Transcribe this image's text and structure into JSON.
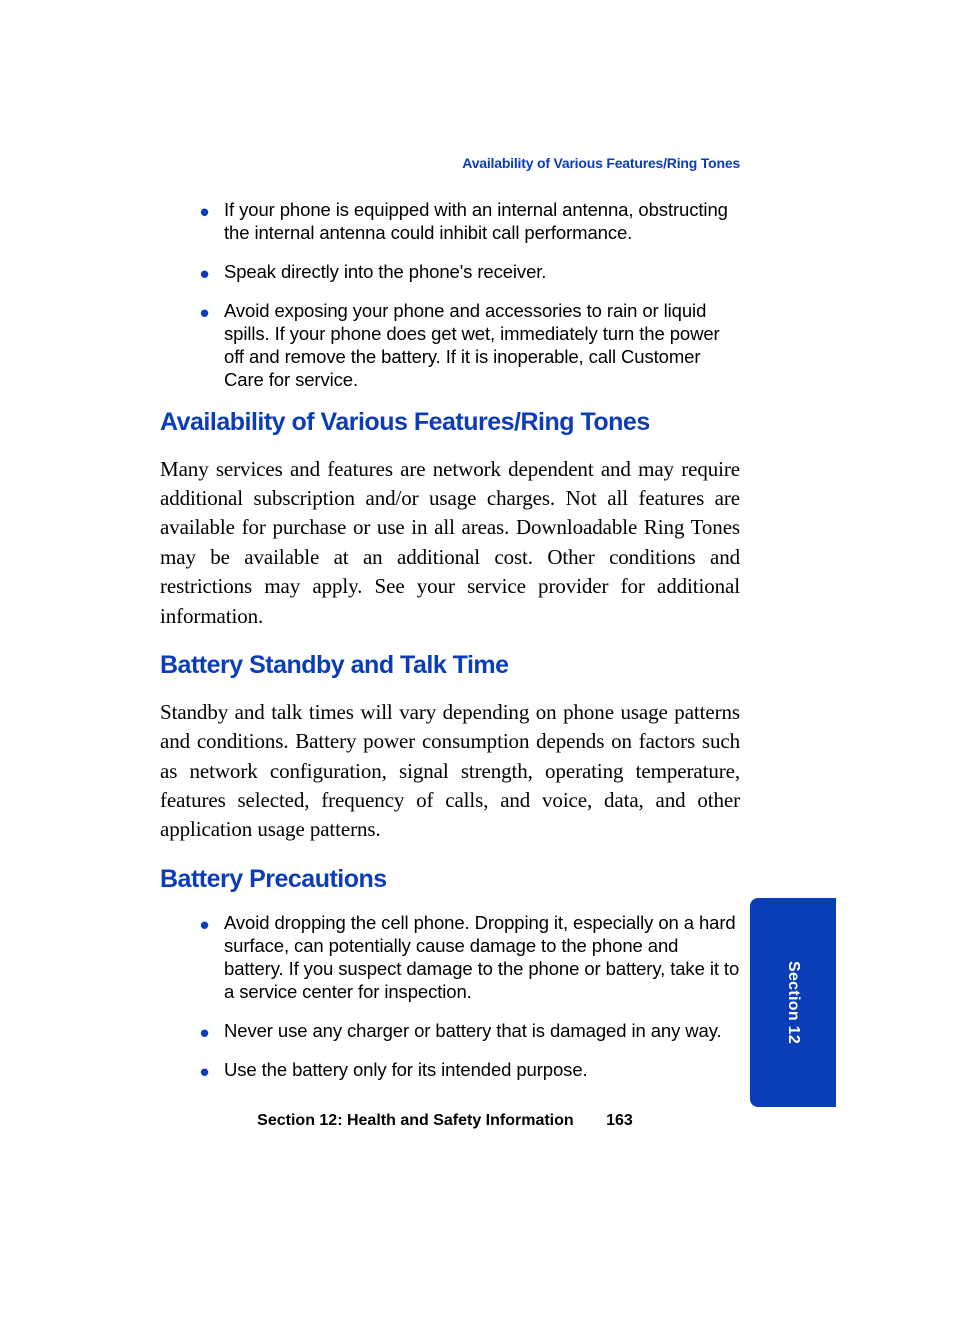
{
  "colors": {
    "accent": "#0b3db8",
    "text": "#000000",
    "background": "#ffffff",
    "tab_background": "#0b3db8",
    "tab_text": "#ffffff"
  },
  "typography": {
    "heading_font": "Arial",
    "heading_size_pt": 19,
    "heading_weight": "bold",
    "body_font": "Palatino",
    "body_size_pt": 16,
    "bullet_font": "Arial",
    "bullet_size_pt": 14,
    "running_header_size_pt": 11,
    "footer_size_pt": 12
  },
  "running_header": "Availability of Various Features/Ring Tones",
  "top_bullets": [
    "If your phone is equipped with an internal antenna, obstructing the internal antenna could inhibit call performance.",
    "Speak directly into the phone's receiver.",
    "Avoid exposing your phone and accessories to rain or liquid spills. If your phone does get wet, immediately turn the power off and remove the battery. If it is inoperable, call Customer Care for service."
  ],
  "sections": [
    {
      "title": "Availability of Various Features/Ring Tones",
      "body": "Many services and features are network dependent and may require additional subscription and/or usage charges. Not all features are available for purchase or use in all areas. Downloadable Ring Tones may be available at an additional cost. Other conditions and restrictions may apply. See your service provider for additional information."
    },
    {
      "title": "Battery Standby and Talk Time",
      "body": "Standby and talk times will vary depending on phone usage patterns and conditions. Battery power consumption depends on factors such as network configuration, signal strength, operating temperature, features selected, frequency of calls, and voice, data, and other application usage patterns."
    },
    {
      "title": "Battery Precautions",
      "bullets": [
        "Avoid dropping the cell phone. Dropping it, especially on a hard surface, can potentially cause damage to the phone and battery. If you suspect damage to the phone or battery, take it to a service center for inspection.",
        "Never use any charger or battery that is damaged in any way.",
        "Use the battery only for its intended purpose."
      ]
    }
  ],
  "footer": {
    "section_label": "Section 12: Health and Safety Information",
    "page_number": "163"
  },
  "side_tab": "Section 12"
}
